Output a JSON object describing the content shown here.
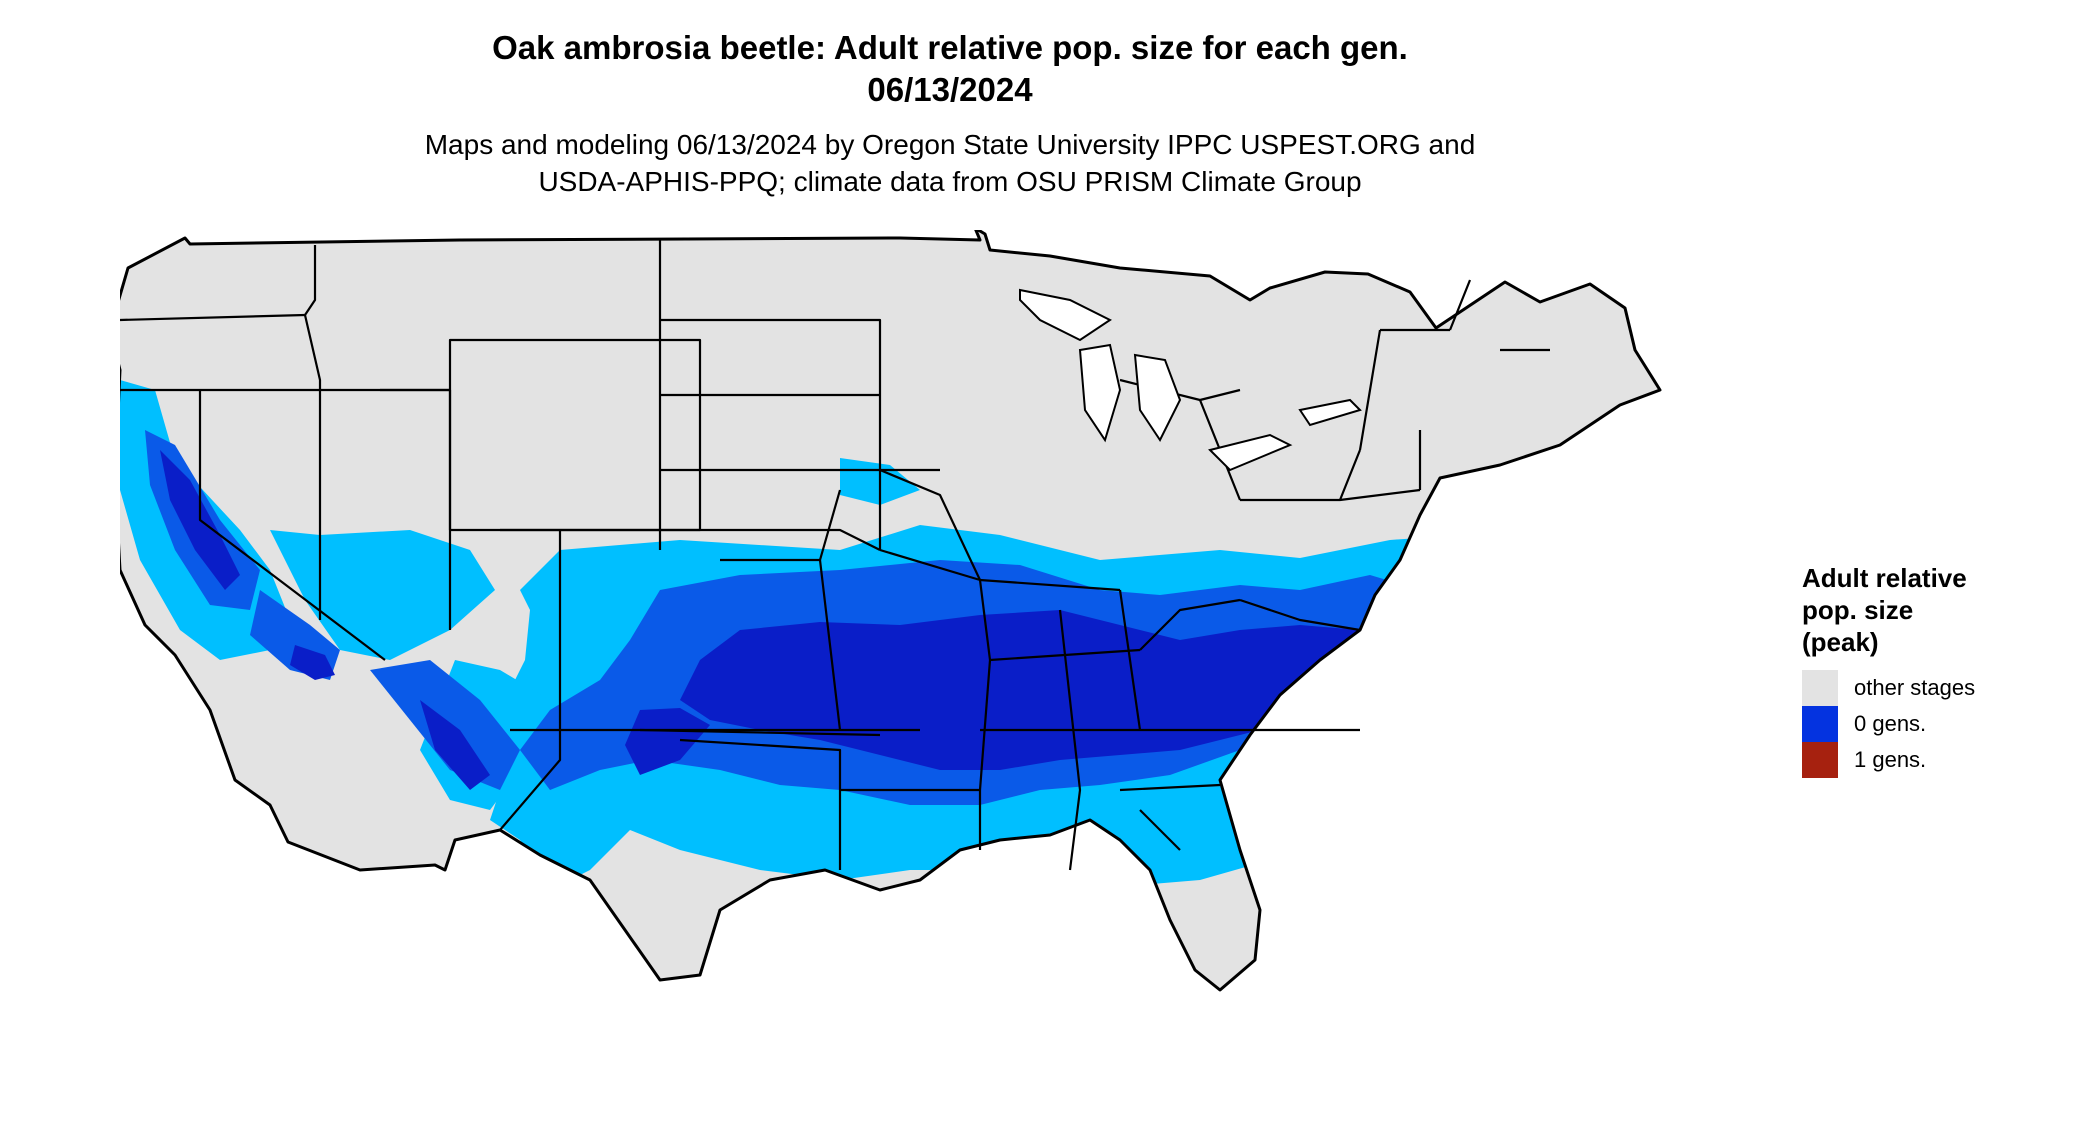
{
  "title_line1": "Oak ambrosia beetle: Adult relative pop. size for each gen.",
  "title_line2": "06/13/2024",
  "subtitle_line1": "Maps and modeling 06/13/2024 by Oregon State University IPPC USPEST.ORG and",
  "subtitle_line2": "USDA-APHIS-PPQ; climate data from OSU PRISM Climate Group",
  "legend": {
    "title_lines": [
      "Adult relative",
      "pop. size",
      "(peak)"
    ],
    "items": [
      {
        "label": "other stages",
        "color": "#e3e3e3"
      },
      {
        "label": "0 gens.",
        "color": "#0433e0"
      },
      {
        "label": "1 gens.",
        "color": "#a6210f"
      }
    ]
  },
  "colors": {
    "land": "#e3e3e3",
    "light_blue": "#00bfff",
    "mid_blue": "#0a5ae8",
    "dark_blue": "#0a1ec8",
    "orange": "#f04a14",
    "dark_red": "#a6210f",
    "border": "#000000"
  }
}
